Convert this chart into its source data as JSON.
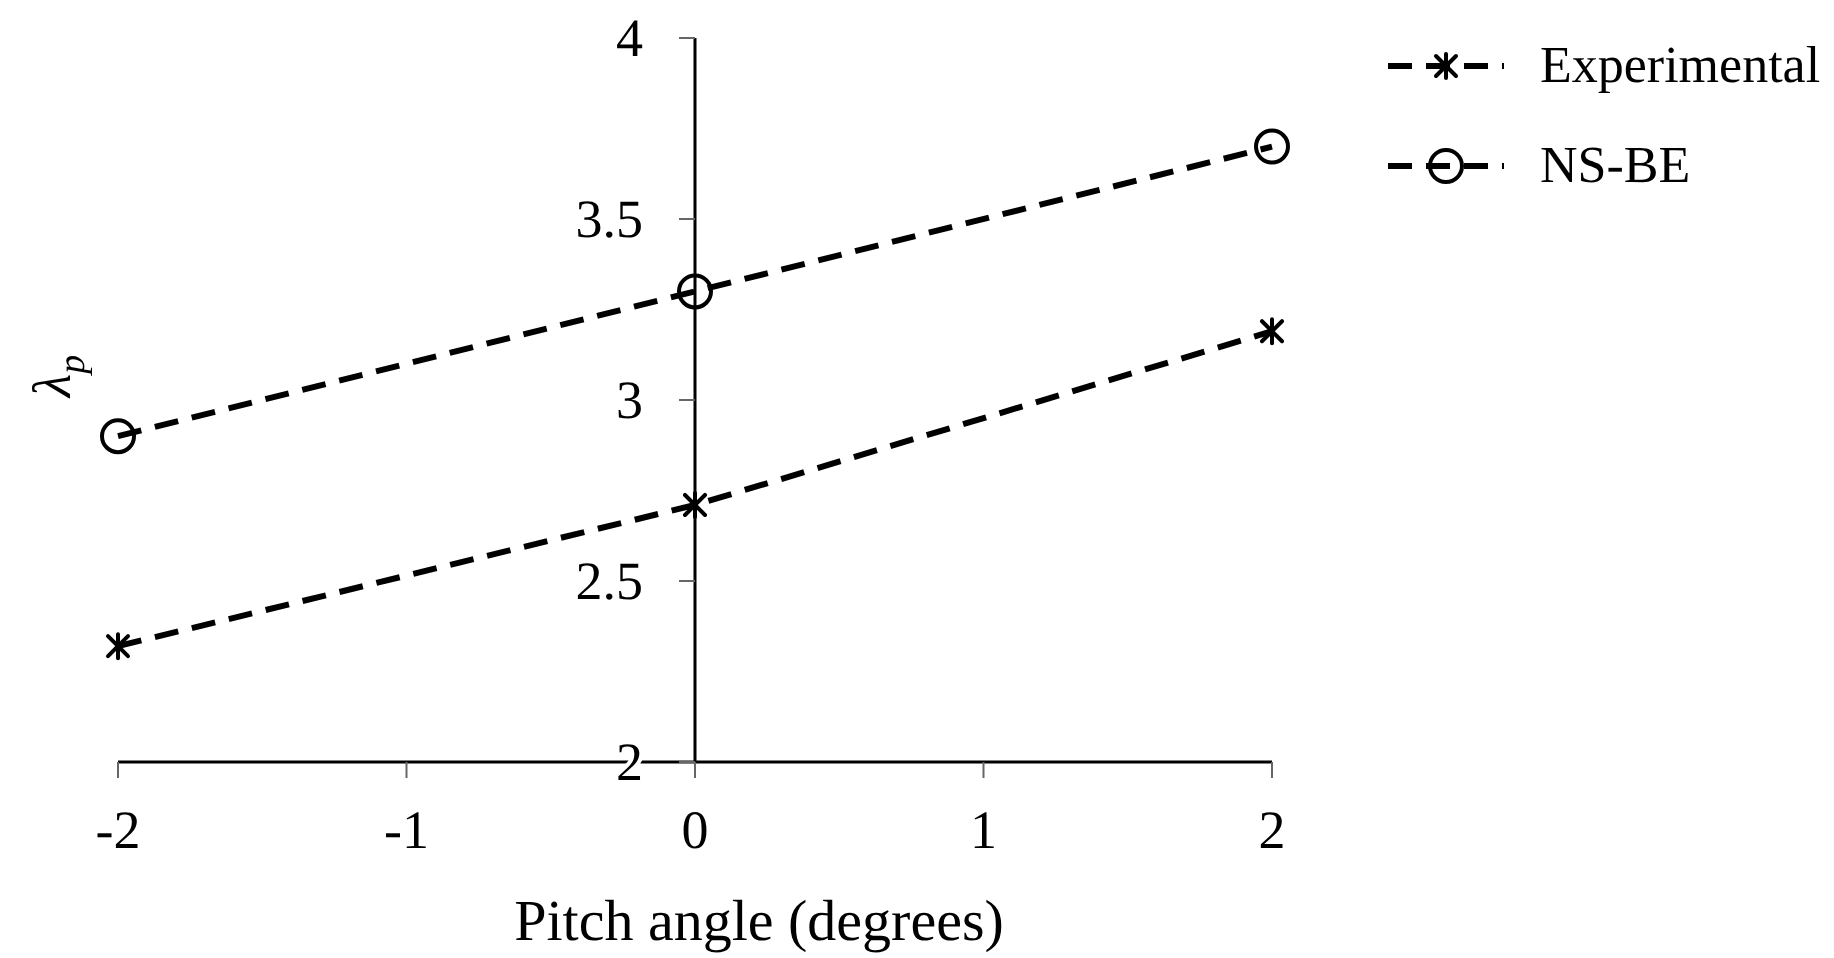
{
  "chart_data": {
    "type": "line",
    "xlabel": "Pitch angle (degrees)",
    "ylabel": "λ$_{p}$",
    "x": [
      -2,
      0,
      2
    ],
    "series": [
      {
        "name": "Experimental",
        "color": "#000000",
        "values": [
          2.32,
          2.71,
          3.19
        ],
        "marker": "cross"
      },
      {
        "name": "NS-BE",
        "color": "#000000",
        "values": [
          2.9,
          3.3,
          3.7
        ],
        "marker": "circle"
      }
    ],
    "xlim": [
      -2,
      2
    ],
    "xticks": [
      -2,
      -1,
      0,
      1,
      2
    ],
    "ylim": [
      2,
      4
    ],
    "yticks": [
      2,
      2.5,
      3,
      3.5,
      4
    ],
    "legend": "top right",
    "line_style": "dashed"
  }
}
